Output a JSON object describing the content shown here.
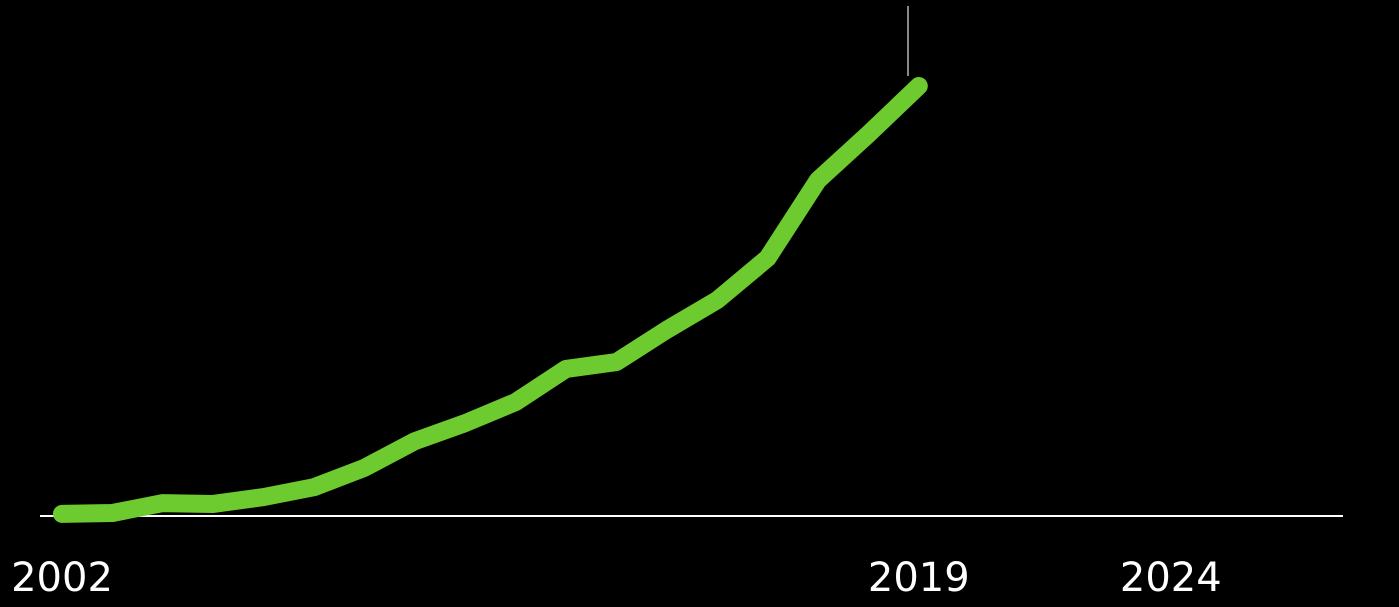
{
  "chart_data": {
    "type": "line",
    "x": [
      2002,
      2003,
      2004,
      2005,
      2006,
      2007,
      2008,
      2009,
      2010,
      2011,
      2012,
      2013,
      2014,
      2015,
      2016,
      2017,
      2018,
      2019
    ],
    "series": [
      {
        "color": "#6ecb2f",
        "values": [
          0.5,
          0.7,
          3,
          2.8,
          4.4,
          6.7,
          11.2,
          17.4,
          21.6,
          26.5,
          34.2,
          35.8,
          43.3,
          50.2,
          60,
          78.1,
          88.8,
          100
        ]
      }
    ],
    "xlim": [
      2002,
      2024
    ],
    "xticks": [
      2002,
      2019,
      2024
    ],
    "ylim": [
      0,
      100
    ]
  }
}
